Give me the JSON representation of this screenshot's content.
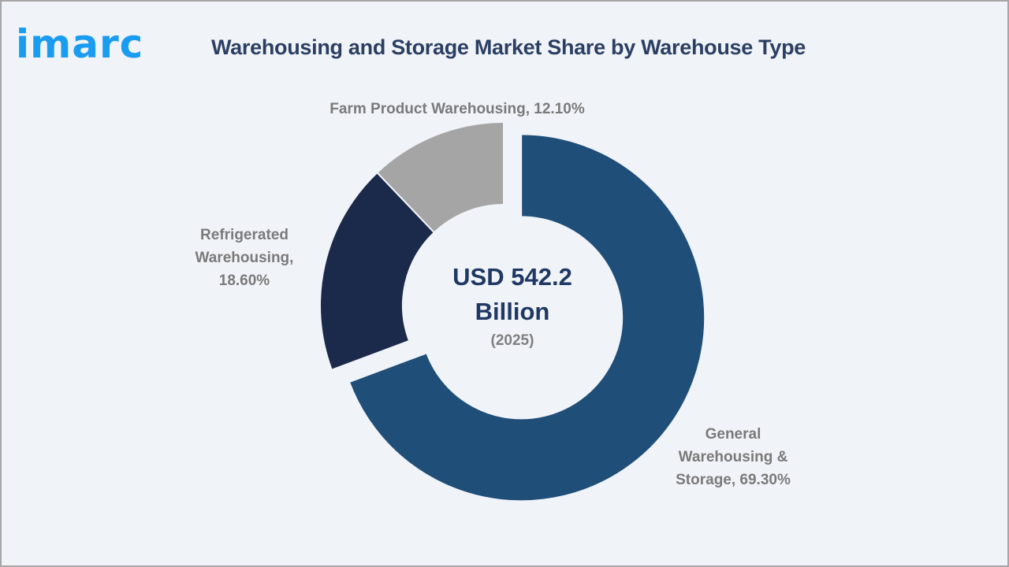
{
  "logo": {
    "text": "imarc",
    "color": "#1a9cf0"
  },
  "header": {
    "title": "Warehousing and Storage Market Share by Warehouse Type"
  },
  "center": {
    "value_line1": "USD 542.2",
    "value_line2": "Billion",
    "year": "(2025)"
  },
  "labels": {
    "farm": "Farm Product Warehousing, 12.10%",
    "refrigerated_line1": "Refrigerated",
    "refrigerated_line2": "Warehousing,",
    "refrigerated_line3": "18.60%",
    "general_line1": "General",
    "general_line2": "Warehousing &",
    "general_line3": "Storage, 69.30%"
  },
  "colors": {
    "general": "#1f4e79",
    "refrigerated": "#1b2a4a",
    "farm": "#a5a5a5",
    "background": "#f0f3f8",
    "title": "#2b3f63",
    "label": "#7a7a7a"
  },
  "chart_data": {
    "type": "pie",
    "subtype": "donut",
    "title": "Warehousing and Storage Market Share by Warehouse Type",
    "categories": [
      "General Warehousing & Storage",
      "Refrigerated Warehousing",
      "Farm Product Warehousing"
    ],
    "values": [
      69.3,
      18.6,
      12.1
    ],
    "unit": "%",
    "center_annotation": "USD 542.2 Billion (2025)",
    "exploded": [
      "General Warehousing & Storage"
    ],
    "legend": "none (data labels outside slices)",
    "colors": [
      "#1f4e79",
      "#1b2a4a",
      "#a5a5a5"
    ]
  }
}
